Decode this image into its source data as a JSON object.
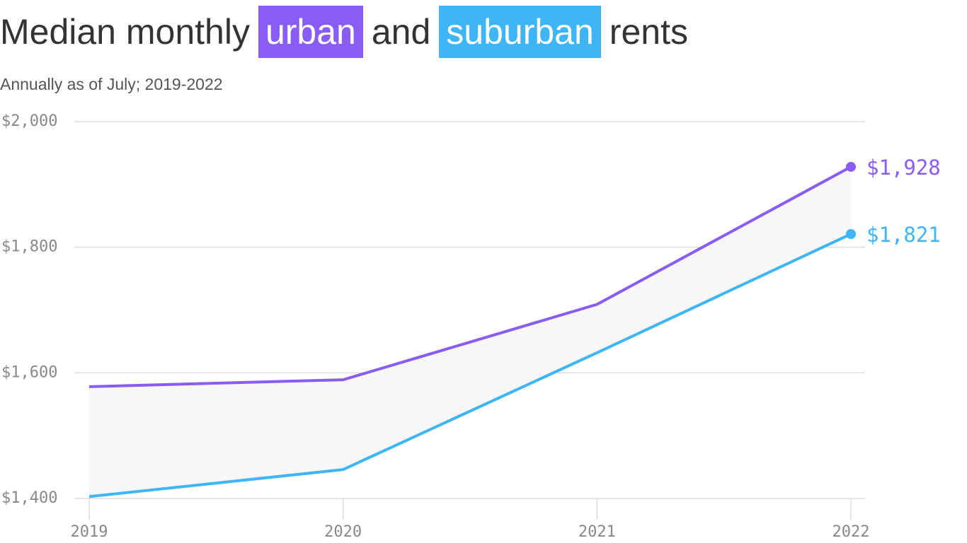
{
  "chart_data": {
    "type": "line",
    "title_parts": [
      "Median monthly",
      "and",
      "rents"
    ],
    "subtitle": "Annually as of July; 2019-2022",
    "x": [
      2019,
      2020,
      2021,
      2022
    ],
    "series": [
      {
        "name": "urban",
        "color": "#8a5cf6",
        "values": [
          1578,
          1589,
          1709,
          1928
        ],
        "value_labels": [
          null,
          null,
          null,
          "$1,928"
        ]
      },
      {
        "name": "suburban",
        "color": "#3db5f7",
        "values": [
          1403,
          1446,
          1632,
          1821
        ],
        "value_labels": [
          null,
          null,
          null,
          "$1,821"
        ]
      }
    ],
    "xlim": [
      2019,
      2022
    ],
    "xticks": [
      2019,
      2020,
      2021,
      2022
    ],
    "ylim": [
      1400,
      2000
    ],
    "yticks": [
      {
        "value": 1400,
        "label": "$1,400"
      },
      {
        "value": 1600,
        "label": "$1,600"
      },
      {
        "value": 1800,
        "label": "$1,800"
      },
      {
        "value": 2000,
        "label": "$2,000"
      }
    ],
    "grid": true,
    "band_color": "#f7f7f7"
  }
}
